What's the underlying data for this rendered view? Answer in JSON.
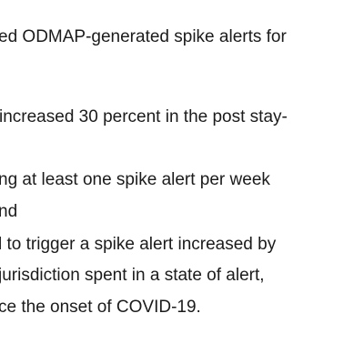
{
  "document": {
    "lines": [
      "ed ODMAP-generated spike alerts for",
      "increased 30 percent in the post stay-",
      "ng at least one spike alert per week",
      "nd",
      "l to trigger a spike alert increased by",
      "jurisdiction spent in a state of alert,",
      "ce the onset of COVID-19."
    ]
  }
}
